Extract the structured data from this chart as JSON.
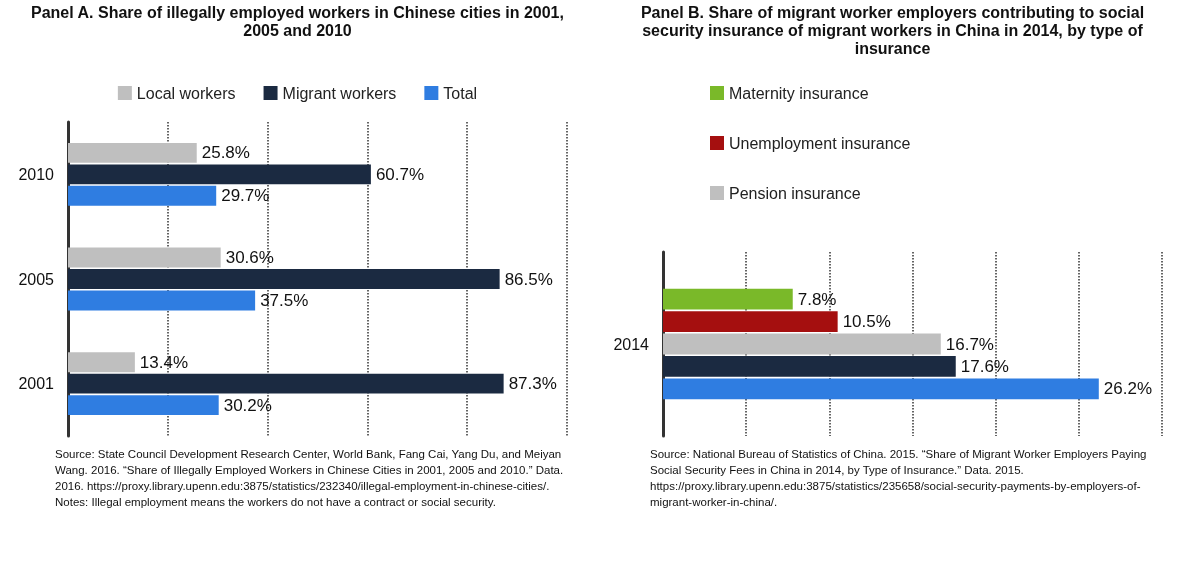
{
  "chart_data": [
    {
      "type": "bar",
      "orientation": "horizontal",
      "title": "Panel A. Share of illegally employed workers in Chinese cities in 2001, 2005 and 2010",
      "categories": [
        "2010",
        "2005",
        "2001"
      ],
      "series": [
        {
          "name": "Local workers",
          "color": "#bfbfbf",
          "values": [
            25.8,
            30.6,
            13.4
          ],
          "value_labels": [
            "25.8%",
            "30.6%",
            "13.4%"
          ]
        },
        {
          "name": "Migrant workers",
          "color": "#1b2a41",
          "values": [
            60.7,
            86.5,
            87.3
          ],
          "value_labels": [
            "60.7%",
            "86.5%",
            "87.3%"
          ]
        },
        {
          "name": "Total",
          "color": "#2f7de1",
          "values": [
            29.7,
            37.5,
            30.2
          ],
          "value_labels": [
            "29.7%",
            "37.5%",
            "30.2%"
          ]
        }
      ],
      "xlim": [
        0,
        100
      ],
      "xticks": [
        {
          "value": 20,
          "label": null
        },
        {
          "value": 40,
          "label": null
        },
        {
          "value": 60,
          "label": null
        },
        {
          "value": 80,
          "label": null
        },
        {
          "value": 100,
          "label": null
        }
      ],
      "grid": "x",
      "legend": "top",
      "tick_labels": "y",
      "annotations": [
        "Source: State Council Development Research Center, World Bank, Fang Cai, Yang Du, and Meiyan Wang. 2016. “Share of Illegally Employed Workers in Chinese Cities in 2001, 2005 and 2010.” Data. 2016. https://proxy.library.upenn.edu:3875/statistics/232340/illegal-employment-in-chinese-cities/. Notes: Illegal employment means the workers do not have a contract or social security."
      ]
    },
    {
      "type": "bar",
      "orientation": "horizontal",
      "title": "Panel B. Share of migrant worker employers contributing to social security insurance of migrant workers in China in 2014, by type of insurance",
      "categories": [
        "2014"
      ],
      "series": [
        {
          "name": "Maternity insurance",
          "color": "#7ab929",
          "values": [
            7.8
          ],
          "value_labels": [
            "7.8%"
          ]
        },
        {
          "name": "Unemployment insurance",
          "color": "#a50f0f",
          "values": [
            10.5
          ],
          "value_labels": [
            "10.5%"
          ]
        },
        {
          "name": "Pension insurance",
          "color": "#bfbfbf",
          "values": [
            16.7
          ],
          "value_labels": [
            "16.7%"
          ]
        },
        {
          "color": "#1b2a41",
          "values": [
            17.6
          ],
          "value_labels": [
            "17.6%"
          ]
        },
        {
          "color": "#2f7de1",
          "values": [
            26.2
          ],
          "value_labels": [
            "26.2%"
          ]
        }
      ],
      "xlim": [
        0,
        30
      ],
      "xticks": [
        {
          "value": 5,
          "label": null
        },
        {
          "value": 10,
          "label": null
        },
        {
          "value": 15,
          "label": null
        },
        {
          "value": 20,
          "label": null
        },
        {
          "value": 25,
          "label": null
        },
        {
          "value": 30,
          "label": null
        }
      ],
      "grid": "x",
      "legend": "top left",
      "tick_labels": "y",
      "annotations": [
        "Source: National Bureau of Statistics of China. 2015. “Share of Migrant Worker Employers Paying Social Security Fees in China in 2014, by Type of Insurance.” Data. 2015. https://proxy.library.upenn.edu:3875/statistics/235658/social-security-payments-by-employers-of-migrant-worker-in-china/."
      ]
    }
  ]
}
